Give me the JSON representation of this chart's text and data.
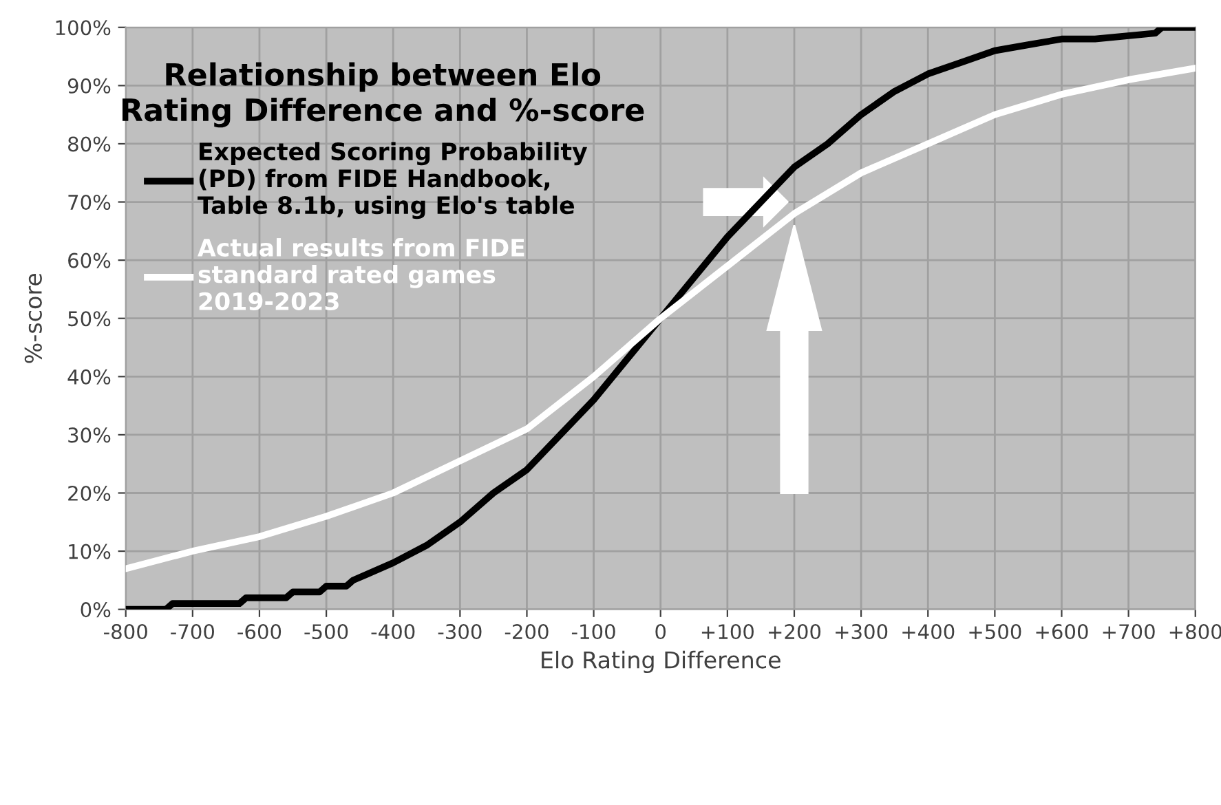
{
  "chart_data": {
    "type": "line",
    "title": "Relationship between Elo\nRating Difference and %-score",
    "xlabel": "Elo Rating Difference",
    "ylabel": "%-score",
    "series": [
      {
        "name": "Expected Scoring Probability\n(PD) from FIDE Handbook,\nTable 8.1b, using Elo's table",
        "color": "#000000",
        "x": [
          -800,
          -740,
          -730,
          -630,
          -620,
          -560,
          -550,
          -510,
          -500,
          -470,
          -460,
          -440,
          -400,
          -350,
          -300,
          -250,
          -200,
          -150,
          -100,
          -50,
          0,
          50,
          100,
          150,
          200,
          250,
          300,
          350,
          400,
          450,
          500,
          550,
          600,
          650,
          740,
          750,
          800
        ],
        "values": [
          0,
          0,
          1,
          1,
          2,
          2,
          3,
          3,
          4,
          4,
          5,
          6,
          8,
          11,
          15,
          20,
          24,
          30,
          36,
          43,
          50,
          57,
          64,
          70,
          76,
          80,
          85,
          89,
          92,
          94,
          96,
          97,
          98,
          98,
          99,
          100,
          100
        ]
      },
      {
        "name": "Actual results from FIDE\nstandard rated games\n2019-2023",
        "color": "#ffffff",
        "x": [
          -800,
          -700,
          -600,
          -500,
          -400,
          -300,
          -200,
          -100,
          0,
          100,
          200,
          300,
          400,
          500,
          600,
          700,
          800
        ],
        "values": [
          7,
          10,
          12.5,
          16,
          20,
          25.5,
          31,
          40,
          50,
          59,
          68,
          75,
          80,
          85,
          88.5,
          91,
          93
        ]
      }
    ],
    "xlim": [
      -800,
      800
    ],
    "xticks": [
      -800,
      -700,
      -600,
      -500,
      -400,
      -300,
      -200,
      -100,
      0,
      {
        "value": 100,
        "label": "+100"
      },
      {
        "value": 200,
        "label": "+200"
      },
      {
        "value": 300,
        "label": "+300"
      },
      {
        "value": 400,
        "label": "+400"
      },
      {
        "value": 500,
        "label": "+500"
      },
      {
        "value": 600,
        "label": "+600"
      },
      {
        "value": 700,
        "label": "+700"
      },
      {
        "value": 800,
        "label": "+800"
      }
    ],
    "ylim": [
      0,
      100
    ],
    "yticks": [
      {
        "value": 0,
        "label": "0%"
      },
      {
        "value": 10,
        "label": "10%"
      },
      {
        "value": 20,
        "label": "20%"
      },
      {
        "value": 30,
        "label": "30%"
      },
      {
        "value": 40,
        "label": "40%"
      },
      {
        "value": 50,
        "label": "50%"
      },
      {
        "value": 60,
        "label": "60%"
      },
      {
        "value": 70,
        "label": "70%"
      },
      {
        "value": 80,
        "label": "80%"
      },
      {
        "value": 90,
        "label": "90%"
      },
      {
        "value": 100,
        "label": "100%"
      }
    ],
    "grid": true,
    "legend": "top left",
    "marker": "none",
    "line_style": "solid"
  }
}
